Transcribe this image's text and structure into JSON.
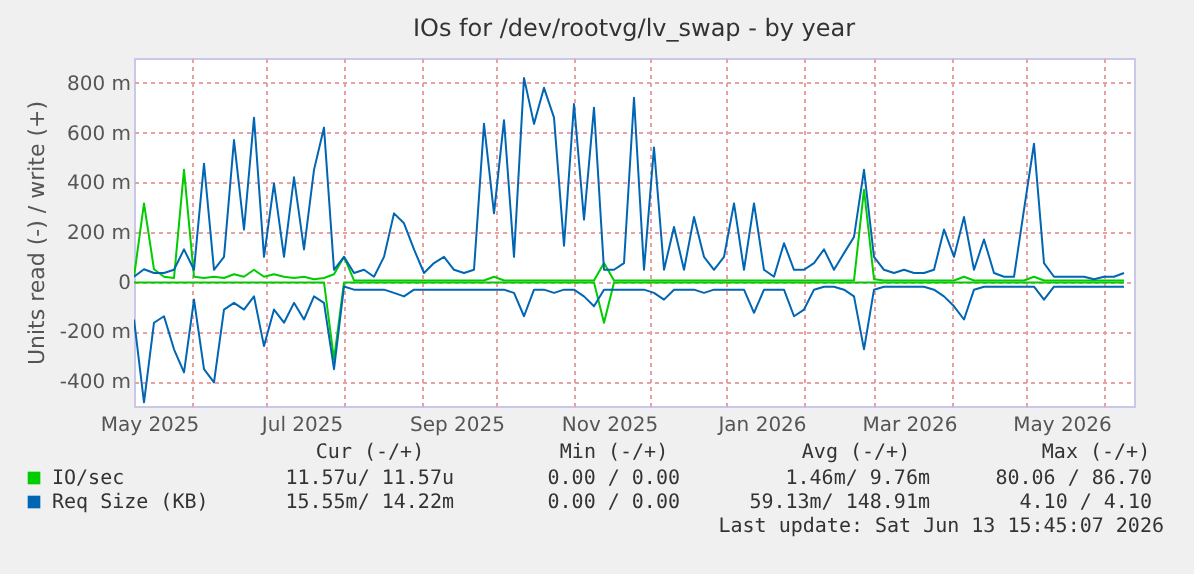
{
  "chart_data": {
    "type": "line",
    "title": "IOs for /dev/rootvg/lv_swap - by year",
    "ylabel": "Units read (-) / write (+)",
    "x": [
      "2025-05-09",
      "2025-05-13",
      "2025-05-17",
      "2025-05-21",
      "2025-05-25",
      "2025-05-29",
      "2025-06-02",
      "2025-06-06",
      "2025-06-10",
      "2025-06-14",
      "2025-06-18",
      "2025-06-22",
      "2025-06-26",
      "2025-06-30",
      "2025-07-04",
      "2025-07-08",
      "2025-07-12",
      "2025-07-16",
      "2025-07-20",
      "2025-07-24",
      "2025-07-28",
      "2025-08-01",
      "2025-08-05",
      "2025-08-09",
      "2025-08-13",
      "2025-08-17",
      "2025-08-21",
      "2025-08-25",
      "2025-08-29",
      "2025-09-02",
      "2025-09-06",
      "2025-09-10",
      "2025-09-14",
      "2025-09-18",
      "2025-09-22",
      "2025-09-26",
      "2025-09-30",
      "2025-10-04",
      "2025-10-08",
      "2025-10-12",
      "2025-10-16",
      "2025-10-20",
      "2025-10-24",
      "2025-10-28",
      "2025-11-01",
      "2025-11-05",
      "2025-11-09",
      "2025-11-13",
      "2025-11-17",
      "2025-11-21",
      "2025-11-25",
      "2025-11-29",
      "2025-12-03",
      "2025-12-07",
      "2025-12-11",
      "2025-12-15",
      "2025-12-19",
      "2025-12-23",
      "2025-12-27",
      "2025-12-31",
      "2026-01-04",
      "2026-01-08",
      "2026-01-12",
      "2026-01-16",
      "2026-01-20",
      "2026-01-24",
      "2026-01-28",
      "2026-02-01",
      "2026-02-05",
      "2026-02-09",
      "2026-02-13",
      "2026-02-17",
      "2026-02-21",
      "2026-02-25",
      "2026-03-01",
      "2026-03-05",
      "2026-03-09",
      "2026-03-13",
      "2026-03-17",
      "2026-03-21",
      "2026-03-25",
      "2026-03-29",
      "2026-04-02",
      "2026-04-06",
      "2026-04-10",
      "2026-04-14",
      "2026-04-18",
      "2026-04-22",
      "2026-04-26",
      "2026-04-30",
      "2026-05-04",
      "2026-05-08",
      "2026-05-12",
      "2026-05-16",
      "2026-05-20",
      "2026-05-24",
      "2026-05-28",
      "2026-06-01",
      "2026-06-05",
      "2026-06-09"
    ],
    "series": [
      {
        "name": "IO/sec",
        "color": "#00cc00",
        "values": [
          20,
          315,
          50,
          20,
          15,
          450,
          20,
          15,
          20,
          15,
          30,
          20,
          48,
          20,
          30,
          20,
          15,
          20,
          10,
          15,
          30,
          100,
          5,
          5,
          5,
          5,
          5,
          5,
          5,
          5,
          5,
          5,
          5,
          5,
          5,
          5,
          20,
          5,
          5,
          5,
          5,
          5,
          5,
          5,
          5,
          5,
          5,
          75,
          5,
          5,
          5,
          5,
          5,
          5,
          5,
          5,
          5,
          5,
          5,
          5,
          5,
          5,
          5,
          5,
          5,
          5,
          5,
          5,
          5,
          5,
          5,
          5,
          5,
          370,
          10,
          5,
          5,
          5,
          5,
          5,
          5,
          5,
          5,
          20,
          5,
          5,
          5,
          5,
          5,
          5,
          20,
          5,
          5,
          5,
          5,
          5,
          5,
          5,
          5,
          5
        ]
      },
      {
        "color": "#00cc00",
        "values": [
          -3,
          -3,
          -3,
          -3,
          -3,
          -3,
          -3,
          -3,
          -3,
          -3,
          -3,
          -3,
          -3,
          -3,
          -3,
          -3,
          -3,
          -3,
          -3,
          -3,
          -312,
          -3,
          -3,
          -3,
          -3,
          -3,
          -3,
          -3,
          -3,
          -3,
          -3,
          -3,
          -3,
          -3,
          -3,
          -3,
          -3,
          -3,
          -3,
          -3,
          -3,
          -3,
          -3,
          -3,
          -3,
          -3,
          -3,
          -165,
          -3,
          -3,
          -3,
          -3,
          -3,
          -3,
          -3,
          -3,
          -3,
          -3,
          -3,
          -3,
          -3,
          -3,
          -3,
          -3,
          -3,
          -3,
          -3,
          -3,
          -3,
          -3,
          -3,
          -3,
          -3,
          -3,
          -3,
          -3,
          -3,
          -3,
          -3,
          -3,
          -3,
          -3,
          -3,
          -3,
          -3,
          -3,
          -3,
          -3,
          -3,
          -3,
          -3,
          -3,
          -3,
          -3,
          -3,
          -3,
          -3,
          -3,
          -3,
          -3
        ]
      },
      {
        "name": "Req Size (KB)",
        "color": "#0066b3",
        "values": [
          20,
          50,
          35,
          35,
          48,
          130,
          48,
          475,
          48,
          100,
          570,
          210,
          660,
          100,
          395,
          100,
          420,
          130,
          450,
          620,
          48,
          100,
          35,
          48,
          20,
          100,
          275,
          235,
          130,
          35,
          75,
          100,
          48,
          35,
          48,
          635,
          275,
          650,
          100,
          820,
          635,
          780,
          660,
          145,
          715,
          250,
          700,
          48,
          48,
          75,
          740,
          48,
          540,
          48,
          220,
          48,
          260,
          100,
          48,
          100,
          315,
          48,
          315,
          48,
          20,
          155,
          48,
          48,
          75,
          130,
          48,
          115,
          180,
          450,
          100,
          48,
          35,
          48,
          35,
          35,
          48,
          210,
          100,
          260,
          48,
          170,
          35,
          20,
          20,
          290,
          555,
          75,
          20,
          20,
          20,
          20,
          10,
          20,
          20,
          35
        ]
      },
      {
        "color": "#0066b3",
        "values": [
          -152,
          -485,
          -165,
          -139,
          -272,
          -365,
          -72,
          -352,
          -405,
          -112,
          -85,
          -112,
          -59,
          -259,
          -112,
          -165,
          -85,
          -152,
          -59,
          -85,
          -352,
          -19,
          -32,
          -32,
          -32,
          -32,
          -45,
          -59,
          -32,
          -32,
          -32,
          -32,
          -32,
          -32,
          -32,
          -32,
          -32,
          -32,
          -45,
          -139,
          -32,
          -32,
          -45,
          -32,
          -32,
          -59,
          -99,
          -32,
          -32,
          -32,
          -32,
          -32,
          -45,
          -72,
          -32,
          -32,
          -32,
          -45,
          -32,
          -32,
          -32,
          -32,
          -125,
          -32,
          -32,
          -32,
          -139,
          -112,
          -32,
          -20,
          -20,
          -32,
          -59,
          -272,
          -32,
          -20,
          -20,
          -20,
          -20,
          -20,
          -32,
          -59,
          -99,
          -152,
          -32,
          -20,
          -20,
          -20,
          -20,
          -20,
          -20,
          -72,
          -20,
          -20,
          -20,
          -20,
          -20,
          -20,
          -20,
          -20
        ]
      }
    ],
    "xlim": [
      "2025-05-09",
      "2026-06-13"
    ],
    "xticks": [
      {
        "value": "2025-05-15",
        "label": "May 2025"
      },
      {
        "value": "2025-06-01",
        "label": null
      },
      {
        "value": "2025-07-01",
        "label": null
      },
      {
        "value": "2025-07-15",
        "label": "Jul 2025"
      },
      {
        "value": "2025-08-01",
        "label": null
      },
      {
        "value": "2025-09-01",
        "label": null
      },
      {
        "value": "2025-09-15",
        "label": "Sep 2025"
      },
      {
        "value": "2025-10-01",
        "label": null
      },
      {
        "value": "2025-11-01",
        "label": null
      },
      {
        "value": "2025-11-15",
        "label": "Nov 2025"
      },
      {
        "value": "2025-12-01",
        "label": null
      },
      {
        "value": "2026-01-01",
        "label": null
      },
      {
        "value": "2026-01-15",
        "label": "Jan 2026"
      },
      {
        "value": "2026-02-01",
        "label": null
      },
      {
        "value": "2026-03-01",
        "label": null
      },
      {
        "value": "2026-03-15",
        "label": "Mar 2026"
      },
      {
        "value": "2026-04-01",
        "label": null
      },
      {
        "value": "2026-05-01",
        "label": null
      },
      {
        "value": "2026-05-15",
        "label": "May 2026"
      },
      {
        "value": "2026-06-01",
        "label": null
      }
    ],
    "ylim": [
      -500,
      900
    ],
    "yticks": [
      {
        "value": -400,
        "label": "-400 m"
      },
      {
        "value": -200,
        "label": "-200 m"
      },
      {
        "value": 0,
        "label": "0"
      },
      {
        "value": 200,
        "label": "200 m"
      },
      {
        "value": 400,
        "label": "400 m"
      },
      {
        "value": 600,
        "label": "600 m"
      },
      {
        "value": 800,
        "label": "800 m"
      }
    ],
    "grid": true,
    "legend": "bottom",
    "annotations": [
      "Cur (-/+)",
      "Min (-/+)",
      "Avg (-/+)",
      "Max (-/+)",
      "11.57u/  11.57u",
      "0.00 /    0.00",
      "1.46m/   9.76m",
      "80.06 /  86.70",
      "15.55m/  14.22m",
      "0.00 /    0.00",
      "59.13m/ 148.91m",
      "4.10 /    4.10",
      "Last update: Sat Jun 13 15:45:07 2026"
    ]
  }
}
